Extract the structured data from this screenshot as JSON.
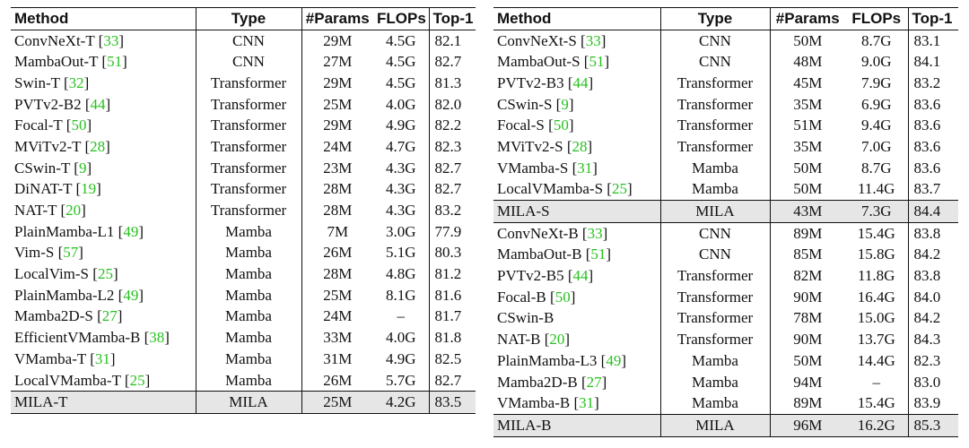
{
  "headers": {
    "method": "Method",
    "type": "Type",
    "params": "#Params",
    "flops": "FLOPs",
    "top1": "Top-1"
  },
  "left_rows": [
    {
      "method": "ConvNeXt-T",
      "ref": "33",
      "type": "CNN",
      "params": "29M",
      "flops": "4.5G",
      "top1": "82.1"
    },
    {
      "method": "MambaOut-T",
      "ref": "51",
      "type": "CNN",
      "params": "27M",
      "flops": "4.5G",
      "top1": "82.7"
    },
    {
      "method": "Swin-T",
      "ref": "32",
      "type": "Transformer",
      "params": "29M",
      "flops": "4.5G",
      "top1": "81.3"
    },
    {
      "method": "PVTv2-B2",
      "ref": "44",
      "type": "Transformer",
      "params": "25M",
      "flops": "4.0G",
      "top1": "82.0"
    },
    {
      "method": "Focal-T",
      "ref": "50",
      "type": "Transformer",
      "params": "29M",
      "flops": "4.9G",
      "top1": "82.2"
    },
    {
      "method": "MViTv2-T",
      "ref": "28",
      "type": "Transformer",
      "params": "24M",
      "flops": "4.7G",
      "top1": "82.3"
    },
    {
      "method": "CSwin-T",
      "ref": "9",
      "type": "Transformer",
      "params": "23M",
      "flops": "4.3G",
      "top1": "82.7"
    },
    {
      "method": "DiNAT-T",
      "ref": "19",
      "type": "Transformer",
      "params": "28M",
      "flops": "4.3G",
      "top1": "82.7"
    },
    {
      "method": "NAT-T",
      "ref": "20",
      "type": "Transformer",
      "params": "28M",
      "flops": "4.3G",
      "top1": "83.2"
    },
    {
      "method": "PlainMamba-L1",
      "ref": "49",
      "type": "Mamba",
      "params": "7M",
      "flops": "3.0G",
      "top1": "77.9"
    },
    {
      "method": "Vim-S",
      "ref": "57",
      "type": "Mamba",
      "params": "26M",
      "flops": "5.1G",
      "top1": "80.3"
    },
    {
      "method": "LocalVim-S",
      "ref": "25",
      "type": "Mamba",
      "params": "28M",
      "flops": "4.8G",
      "top1": "81.2"
    },
    {
      "method": "PlainMamba-L2",
      "ref": "49",
      "type": "Mamba",
      "params": "25M",
      "flops": "8.1G",
      "top1": "81.6"
    },
    {
      "method": "Mamba2D-S",
      "ref": "27",
      "type": "Mamba",
      "params": "24M",
      "flops": "–",
      "top1": "81.7"
    },
    {
      "method": "EfficientVMamba-B",
      "ref": "38",
      "type": "Mamba",
      "params": "33M",
      "flops": "4.0G",
      "top1": "81.8"
    },
    {
      "method": "VMamba-T",
      "ref": "31",
      "type": "Mamba",
      "params": "31M",
      "flops": "4.9G",
      "top1": "82.5"
    },
    {
      "method": "LocalVMamba-T",
      "ref": "25",
      "type": "Mamba",
      "params": "26M",
      "flops": "5.7G",
      "top1": "82.7"
    },
    {
      "method": "MILA-T",
      "ref": "",
      "type": "MILA",
      "params": "25M",
      "flops": "4.2G",
      "top1": "83.5"
    }
  ],
  "right_rows": [
    {
      "method": "ConvNeXt-S",
      "ref": "33",
      "type": "CNN",
      "params": "50M",
      "flops": "8.7G",
      "top1": "83.1"
    },
    {
      "method": "MambaOut-S",
      "ref": "51",
      "type": "CNN",
      "params": "48M",
      "flops": "9.0G",
      "top1": "84.1"
    },
    {
      "method": "PVTv2-B3",
      "ref": "44",
      "type": "Transformer",
      "params": "45M",
      "flops": "7.9G",
      "top1": "83.2"
    },
    {
      "method": "CSwin-S",
      "ref": "9",
      "type": "Transformer",
      "params": "35M",
      "flops": "6.9G",
      "top1": "83.6"
    },
    {
      "method": "Focal-S",
      "ref": "50",
      "type": "Transformer",
      "params": "51M",
      "flops": "9.4G",
      "top1": "83.6"
    },
    {
      "method": "MViTv2-S",
      "ref": "28",
      "type": "Transformer",
      "params": "35M",
      "flops": "7.0G",
      "top1": "83.6"
    },
    {
      "method": "VMamba-S",
      "ref": "31",
      "type": "Mamba",
      "params": "50M",
      "flops": "8.7G",
      "top1": "83.6"
    },
    {
      "method": "LocalVMamba-S",
      "ref": "25",
      "type": "Mamba",
      "params": "50M",
      "flops": "11.4G",
      "top1": "83.7"
    },
    {
      "method": "MILA-S",
      "ref": "",
      "type": "MILA",
      "params": "43M",
      "flops": "7.3G",
      "top1": "84.4"
    },
    {
      "method": "ConvNeXt-B",
      "ref": "33",
      "type": "CNN",
      "params": "89M",
      "flops": "15.4G",
      "top1": "83.8"
    },
    {
      "method": "MambaOut-B",
      "ref": "51",
      "type": "CNN",
      "params": "85M",
      "flops": "15.8G",
      "top1": "84.2"
    },
    {
      "method": "PVTv2-B5",
      "ref": "44",
      "type": "Transformer",
      "params": "82M",
      "flops": "11.8G",
      "top1": "83.8"
    },
    {
      "method": "Focal-B",
      "ref": "50",
      "type": "Transformer",
      "params": "90M",
      "flops": "16.4G",
      "top1": "84.0"
    },
    {
      "method": "CSwin-B",
      "ref": "",
      "type": "Transformer",
      "params": "78M",
      "flops": "15.0G",
      "top1": "84.2"
    },
    {
      "method": "NAT-B",
      "ref": "20",
      "type": "Transformer",
      "params": "90M",
      "flops": "13.7G",
      "top1": "84.3"
    },
    {
      "method": "PlainMamba-L3",
      "ref": "49",
      "type": "Mamba",
      "params": "50M",
      "flops": "14.4G",
      "top1": "82.3"
    },
    {
      "method": "Mamba2D-B",
      "ref": "27",
      "type": "Mamba",
      "params": "94M",
      "flops": "–",
      "top1": "83.0"
    },
    {
      "method": "VMamba-B",
      "ref": "31",
      "type": "Mamba",
      "params": "89M",
      "flops": "15.4G",
      "top1": "83.9"
    },
    {
      "method": "MILA-B",
      "ref": "",
      "type": "MILA",
      "params": "96M",
      "flops": "16.2G",
      "top1": "85.3"
    }
  ],
  "colors": {
    "citation": "#27c11f",
    "highlight_row": "#e6e6e6",
    "rule": "#111111"
  }
}
